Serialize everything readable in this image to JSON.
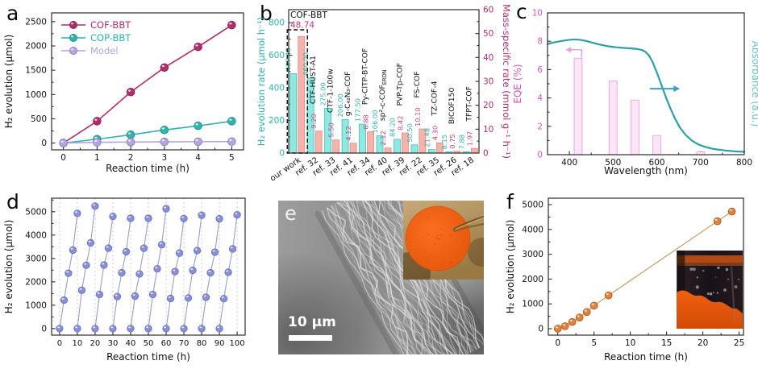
{
  "panel_labels": {
    "a": "a",
    "b": "b",
    "c": "c",
    "d": "d",
    "e": "e",
    "f": "f"
  },
  "panel_e": {
    "scale_bar_text": "10 μm"
  },
  "chart_data": [
    {
      "panel": "a",
      "type": "line",
      "xlabel": "Reaction time (h)",
      "ylabel": "H₂ evolution (μmol)",
      "xticks": [
        0,
        1,
        2,
        3,
        4,
        5
      ],
      "yticks": [
        0,
        500,
        1000,
        1500,
        2000,
        2500
      ],
      "xlim": [
        -0.35,
        5.35
      ],
      "ylim": [
        -140,
        2680
      ],
      "x": [
        0,
        1,
        2,
        3,
        4,
        5
      ],
      "legend_position": "top-left",
      "series": [
        {
          "name": "COF-BBT",
          "color": "#b02e6b",
          "marker_edge": "#8c1e50",
          "values": [
            0,
            450,
            1050,
            1555,
            1980,
            2430
          ]
        },
        {
          "name": "COP-BBT",
          "color": "#2fb3ab",
          "marker_edge": "#1f8f88",
          "values": [
            0,
            80,
            170,
            270,
            355,
            450
          ]
        },
        {
          "name": "Model",
          "color": "#b5a4e0",
          "marker_edge": "#8f7cc8",
          "values": [
            0,
            15,
            20,
            25,
            28,
            30
          ]
        }
      ]
    },
    {
      "panel": "b",
      "type": "bar",
      "categories": [
        "our work",
        "ref. 32",
        "ref. 33",
        "ref. 41",
        "ref. 34",
        "ref. 40",
        "ref. 39",
        "ref. 22",
        "ref. 35",
        "ref. 26",
        "ref. 18"
      ],
      "material_labels": [
        "COF-BBT",
        "CTF-HUST-A1",
        "CTF-1-100w",
        "g-C₄₂N₃-COF",
        "Py-ClTP-BT-COF",
        "sp²-c-COF_ERDN",
        "PVP-Tp-COF",
        "FS-COF",
        "TZ-COF-4",
        "BICOF150",
        "TFPT-COF"
      ],
      "ylabel_left": "H₂ evolution rate (μmol h⁻¹)",
      "ylabel_right": "Mass-specific rate (mmol g⁻¹ h⁻¹)",
      "yticks_left": [
        0,
        200,
        400,
        600,
        800
      ],
      "yticks_right": [
        0,
        10,
        20,
        30,
        40,
        50,
        60
      ],
      "ylim_left": [
        0,
        880
      ],
      "ylim_right": [
        0,
        60
      ],
      "series": [
        {
          "name": "H₂ evolution rate (μmol h⁻¹)",
          "axis": "left",
          "bar_fill": "#8fe9e1",
          "bar_edge": "#3dbfb7",
          "text_color": "#2fb3ab",
          "values": [
            487.4,
            460.0,
            275.0,
            206.0,
            177.5,
            106.0,
            84.2,
            50.5,
            21.48,
            8.15,
            7.88
          ]
        },
        {
          "name": "Mass-specific rate (mmol g⁻¹ h⁻¹)",
          "axis": "right",
          "bar_fill": "#f6b3ab",
          "bar_edge": "#e08a82",
          "text_color": "#cc4585",
          "values": [
            48.74,
            9.2,
            5.5,
            4.12,
            8.88,
            2.12,
            8.42,
            10.1,
            4.3,
            0.75,
            1.97
          ]
        }
      ],
      "highlight": {
        "category": "our work",
        "label": "COF-BBT",
        "value_label": "48.74",
        "label_color": "#111111",
        "value_color": "#c2357f"
      }
    },
    {
      "panel": "c",
      "type": "bar+line",
      "xlabel": "Wavelength (nm)",
      "ylabel_left": "EQE (%)",
      "ylabel_right": "Absorbance (a.u.)",
      "xlim": [
        350,
        800
      ],
      "xticks": [
        400,
        500,
        600,
        700,
        800
      ],
      "ylim_left": [
        0,
        10
      ],
      "yticks_left": [
        0,
        2,
        4,
        6,
        8,
        10
      ],
      "bars": {
        "x": [
          420,
          500,
          550,
          600,
          700
        ],
        "values": [
          6.8,
          5.2,
          3.85,
          1.35,
          0.2
        ],
        "width_nm": 18,
        "fill": "#fbe6f8",
        "edge": "#eaaad9",
        "text_color": "#d85ab4"
      },
      "curve": {
        "color": "#2aa0a8",
        "label_color": "#66c0c8",
        "x": [
          350,
          362,
          375,
          388,
          400,
          412,
          425,
          438,
          450,
          462,
          475,
          488,
          500,
          512,
          525,
          538,
          550,
          558,
          566,
          574,
          582,
          590,
          598,
          606,
          614,
          622,
          632,
          642,
          652,
          665,
          680,
          695,
          710,
          730,
          755,
          780,
          800
        ],
        "y": [
          7.8,
          7.9,
          7.98,
          8.05,
          8.1,
          8.13,
          8.1,
          8.02,
          7.92,
          7.82,
          7.73,
          7.65,
          7.6,
          7.56,
          7.53,
          7.5,
          7.47,
          7.44,
          7.38,
          7.25,
          7.0,
          6.55,
          5.95,
          5.3,
          4.62,
          3.95,
          3.2,
          2.52,
          1.95,
          1.42,
          1.0,
          0.72,
          0.55,
          0.4,
          0.3,
          0.23,
          0.2
        ]
      },
      "arrows": {
        "left_color": "#e9a0d8",
        "right_color": "#35a3c6"
      }
    },
    {
      "panel": "d",
      "type": "line",
      "xlabel": "Reaction time (h)",
      "ylabel": "H₂ evolution (μmol)",
      "xticks": [
        0,
        10,
        20,
        30,
        40,
        50,
        60,
        70,
        80,
        90,
        100
      ],
      "yticks": [
        0,
        1000,
        2000,
        3000,
        4000,
        5000
      ],
      "xlim": [
        -4.5,
        104.5
      ],
      "ylim": [
        -280,
        5580
      ],
      "cycle_starts": [
        0,
        10,
        20,
        30,
        40,
        50,
        60,
        70,
        80,
        90
      ],
      "cycle_offsets": [
        0,
        2.5,
        5,
        7.5,
        10
      ],
      "cycles": [
        [
          0,
          1220,
          2370,
          3360,
          4930
        ],
        [
          0,
          1640,
          2710,
          3670,
          5240
        ],
        [
          0,
          1460,
          2720,
          3440,
          4800
        ],
        [
          0,
          1370,
          2390,
          3290,
          4720
        ],
        [
          0,
          1390,
          2340,
          3440,
          4720
        ],
        [
          0,
          1460,
          2560,
          3590,
          5130
        ],
        [
          0,
          1290,
          2440,
          3230,
          4710
        ],
        [
          0,
          1310,
          2490,
          3340,
          4850
        ],
        [
          0,
          1340,
          2390,
          3270,
          4700
        ],
        [
          0,
          1280,
          2410,
          3410,
          4870
        ]
      ],
      "marker_color": "#8a90d8",
      "marker_edge": "#6a71bd",
      "line_color": "#989ec6",
      "grid_color": "#c9c9c9"
    },
    {
      "panel": "f",
      "type": "line",
      "xlabel": "Reaction time (h)",
      "ylabel": "H₂ evolution (μmol)",
      "xticks": [
        0,
        5,
        10,
        15,
        20,
        25
      ],
      "yticks": [
        0,
        1000,
        2000,
        3000,
        4000,
        5000
      ],
      "xlim": [
        -1.3,
        25.6
      ],
      "ylim": [
        -260,
        5260
      ],
      "x": [
        0,
        1,
        2,
        3,
        4,
        5,
        7,
        22,
        24
      ],
      "values": [
        0,
        100,
        270,
        450,
        670,
        930,
        1340,
        4330,
        4720
      ],
      "marker_color": "#e2823e",
      "marker_edge": "#b05e1e",
      "line_color": "#c8a46d"
    }
  ]
}
